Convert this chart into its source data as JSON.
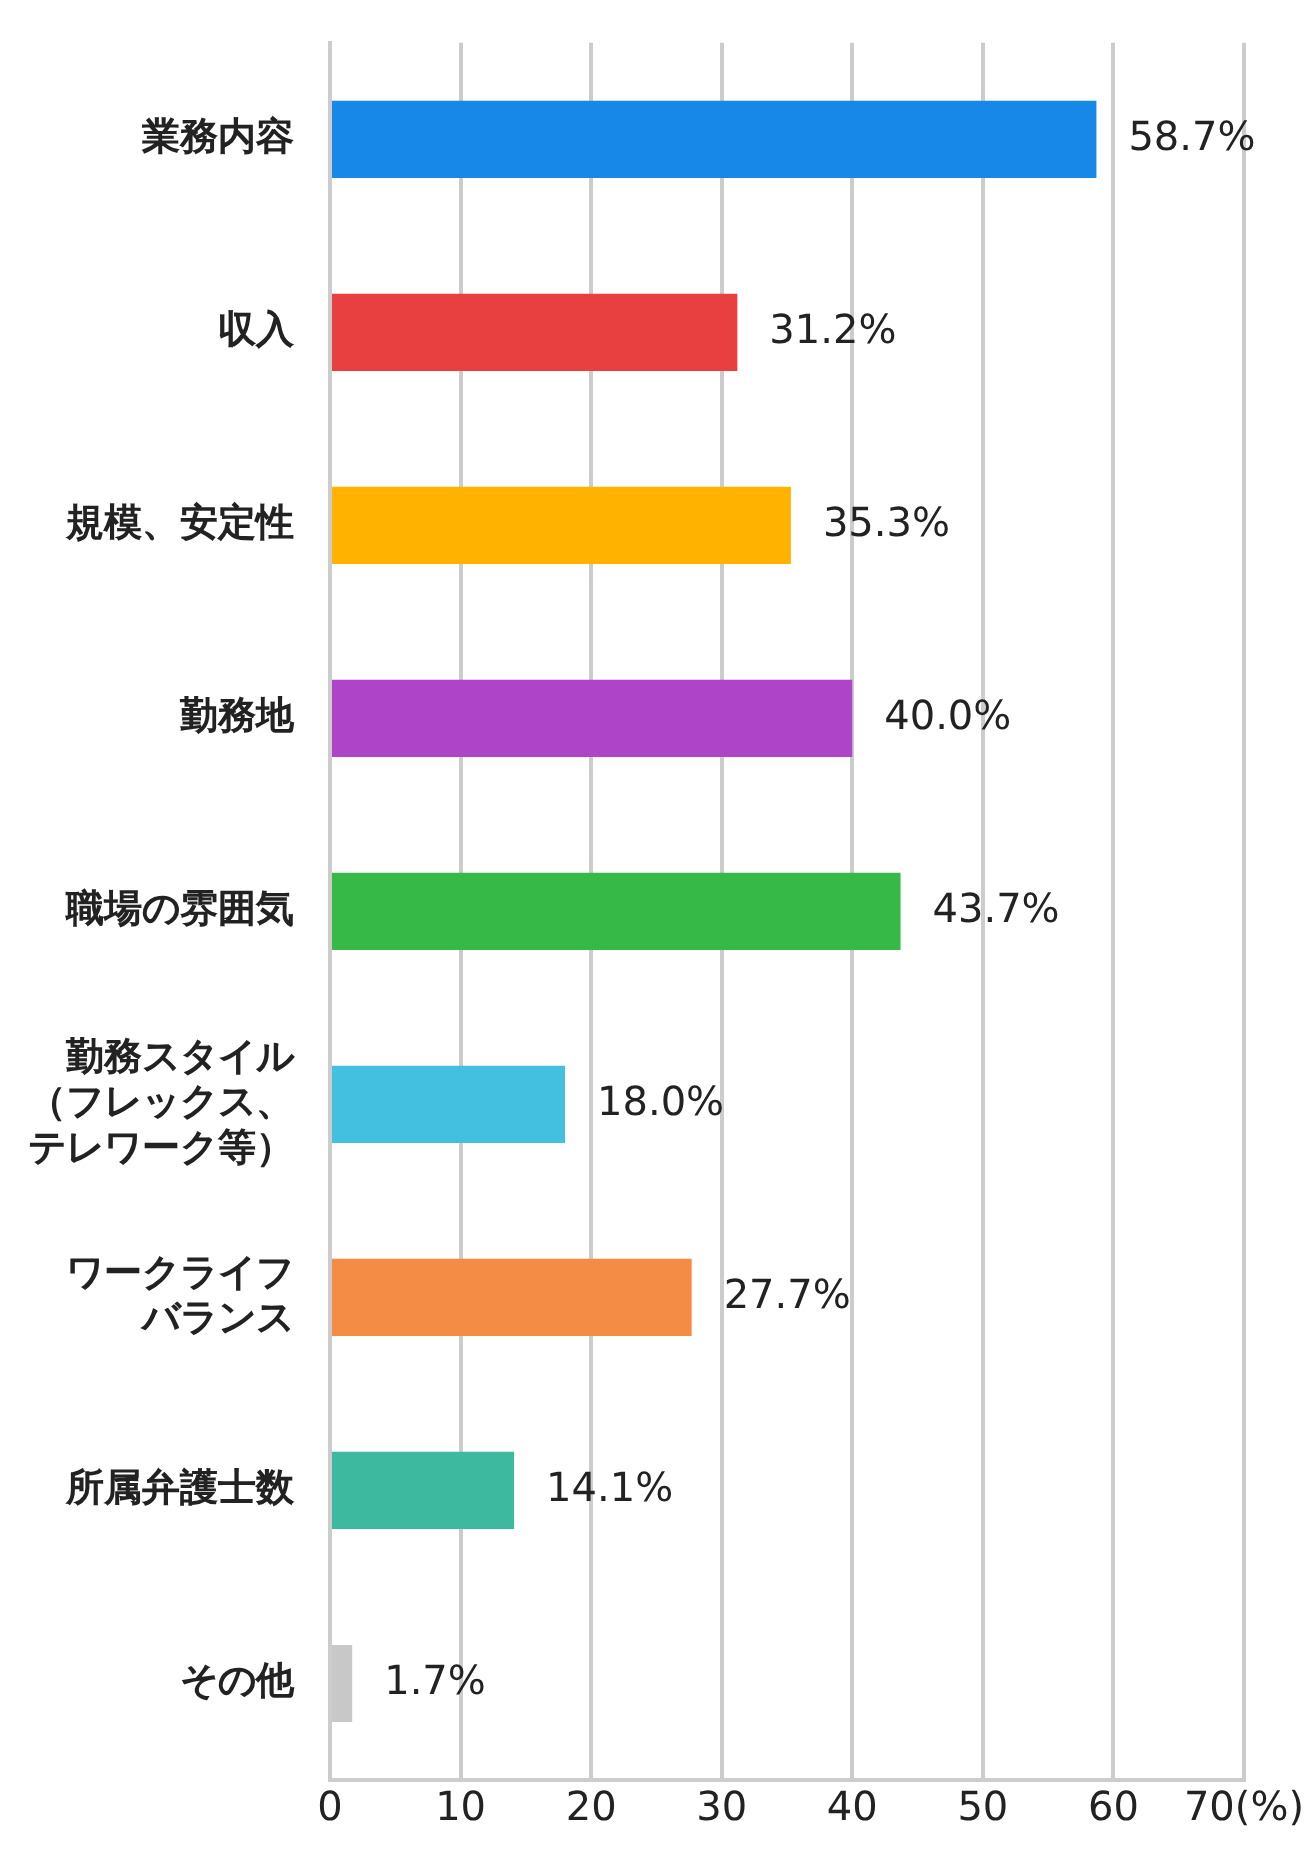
{
  "chart_data": {
    "type": "bar",
    "orientation": "horizontal",
    "categories": [
      "業務内容",
      "収入",
      "規模、安定性",
      "勤務地",
      "職場の雰囲気",
      "勤務スタイル（フレックス、テレワーク等）",
      "ワークライフバランス",
      "所属弁護士数",
      "その他"
    ],
    "values": [
      58.7,
      31.2,
      35.3,
      40.0,
      43.7,
      18.0,
      27.7,
      14.1,
      1.7
    ],
    "value_labels": [
      "58.7%",
      "31.2%",
      "35.3%",
      "40.0%",
      "43.7%",
      "18.0%",
      "27.7%",
      "14.1%",
      "1.7%"
    ],
    "colors": [
      "#1787e8",
      "#e84040",
      "#ffb300",
      "#ae45c8",
      "#36b947",
      "#43bfe0",
      "#f58c45",
      "#3db9a0",
      "#c8c8c8"
    ],
    "xlim": [
      0,
      70
    ],
    "xticks": [
      0,
      10,
      20,
      30,
      40,
      50,
      60,
      {
        "value": 70,
        "label": "70(%)"
      }
    ],
    "grid": "x",
    "legend": false
  }
}
